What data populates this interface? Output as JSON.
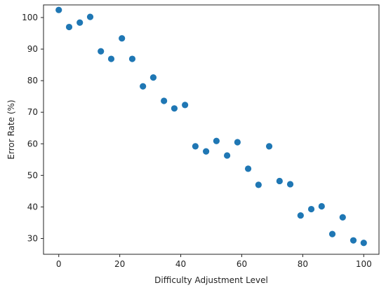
{
  "chart_data": {
    "type": "scatter",
    "title": "",
    "xlabel": "Difficulty Adjustment Level",
    "ylabel": "Error Rate (%)",
    "xlim": [
      -5,
      105
    ],
    "ylim": [
      25,
      104
    ],
    "xticks": [
      0,
      20,
      40,
      60,
      80,
      100
    ],
    "yticks": [
      30,
      40,
      50,
      60,
      70,
      80,
      90,
      100
    ],
    "grid": false,
    "color": "#1f77b4",
    "x": [
      0.0,
      3.4,
      6.9,
      10.3,
      13.8,
      17.2,
      20.7,
      24.1,
      27.6,
      31.0,
      34.5,
      37.9,
      41.4,
      44.8,
      48.3,
      51.7,
      55.2,
      58.6,
      62.1,
      65.5,
      69.0,
      72.4,
      75.9,
      79.3,
      82.8,
      86.2,
      89.7,
      93.1,
      96.6,
      100.0
    ],
    "y": [
      102.4,
      97.0,
      98.4,
      100.2,
      89.3,
      86.9,
      93.4,
      86.9,
      78.2,
      81.0,
      73.6,
      71.2,
      72.3,
      59.2,
      57.6,
      60.9,
      56.3,
      60.5,
      52.1,
      47.0,
      59.2,
      48.2,
      47.2,
      37.3,
      39.3,
      40.2,
      31.4,
      36.7,
      29.4,
      28.6
    ]
  }
}
